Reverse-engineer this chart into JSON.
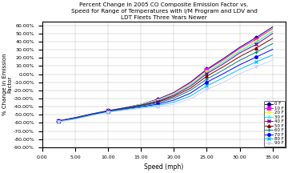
{
  "title": "Percent Change in 2005 CO Composite Emission Factor vs.\nSpeed for Range of Temperatures with I/M Program and LDV and\nLDT Fleets Three Years Newer",
  "xlabel": "Speed (mph)",
  "ylabel": "% Change in Emission\nFactor",
  "xlim": [
    0,
    37
  ],
  "ylim": [
    -0.9,
    0.65
  ],
  "xticks": [
    0.0,
    5.0,
    10.0,
    15.0,
    20.0,
    25.0,
    30.0,
    35.0
  ],
  "ytick_vals": [
    -0.9,
    -0.8,
    -0.7,
    -0.6,
    -0.5,
    -0.4,
    -0.3,
    -0.2,
    -0.1,
    0.0,
    0.1,
    0.2,
    0.3,
    0.4,
    0.5,
    0.6
  ],
  "ytick_labels": [
    "-90.00%",
    "-80.00%",
    "-70.00%",
    "-60.00%",
    "-50.00%",
    "-40.00%",
    "-30.00%",
    "-20.00%",
    "-10.00%",
    "0.00%",
    "10.00%",
    "20.00%",
    "30.00%",
    "40.00%",
    "50.00%",
    "60.00%"
  ],
  "temperatures": [
    0,
    10,
    20,
    30,
    40,
    50,
    60,
    70,
    80,
    90
  ],
  "colors": {
    "0": "#000080",
    "10": "#FF00FF",
    "20": "#FFFF00",
    "30": "#00FFFF",
    "40": "#800080",
    "50": "#800000",
    "60": "#008080",
    "70": "#0000FF",
    "80": "#00BFFF",
    "90": "#D0D0FF"
  },
  "markers": {
    "0": "D",
    "10": "s",
    "20": "*",
    "30": "+",
    "40": "x",
    "50": "^",
    "60": "+",
    "70": "o",
    "80": "x",
    "90": "v"
  },
  "speeds": [
    2.5,
    5.0,
    7.5,
    10.0,
    12.5,
    15.0,
    17.5,
    20.0,
    22.5,
    25.0,
    27.5,
    30.0,
    32.5,
    35.0
  ],
  "curves": {
    "0": [
      -0.575,
      -0.535,
      -0.49,
      -0.45,
      -0.415,
      -0.37,
      -0.31,
      -0.225,
      -0.1,
      0.06,
      0.19,
      0.33,
      0.45,
      0.58
    ],
    "10": [
      -0.575,
      -0.535,
      -0.49,
      -0.45,
      -0.415,
      -0.37,
      -0.315,
      -0.23,
      -0.11,
      0.05,
      0.175,
      0.315,
      0.43,
      0.56
    ],
    "20": [
      -0.575,
      -0.535,
      -0.49,
      -0.45,
      -0.415,
      -0.37,
      -0.32,
      -0.24,
      -0.12,
      0.035,
      0.16,
      0.295,
      0.41,
      0.545
    ],
    "30": [
      -0.575,
      -0.535,
      -0.49,
      -0.45,
      -0.415,
      -0.375,
      -0.325,
      -0.25,
      -0.135,
      0.02,
      0.145,
      0.28,
      0.39,
      0.525
    ],
    "40": [
      -0.575,
      -0.535,
      -0.49,
      -0.45,
      -0.415,
      -0.38,
      -0.335,
      -0.26,
      -0.15,
      0.005,
      0.125,
      0.26,
      0.365,
      0.5
    ],
    "50": [
      -0.58,
      -0.54,
      -0.495,
      -0.455,
      -0.42,
      -0.385,
      -0.345,
      -0.275,
      -0.175,
      -0.025,
      0.09,
      0.215,
      0.32,
      0.44
    ],
    "60": [
      -0.58,
      -0.54,
      -0.495,
      -0.455,
      -0.425,
      -0.39,
      -0.355,
      -0.295,
      -0.2,
      -0.06,
      0.05,
      0.17,
      0.27,
      0.375
    ],
    "70": [
      -0.58,
      -0.545,
      -0.5,
      -0.46,
      -0.43,
      -0.4,
      -0.37,
      -0.32,
      -0.235,
      -0.1,
      0.005,
      0.115,
      0.21,
      0.305
    ],
    "80": [
      -0.585,
      -0.55,
      -0.505,
      -0.465,
      -0.435,
      -0.41,
      -0.385,
      -0.345,
      -0.27,
      -0.145,
      -0.045,
      0.06,
      0.15,
      0.235
    ],
    "90": [
      -0.585,
      -0.555,
      -0.51,
      -0.47,
      -0.445,
      -0.42,
      -0.4,
      -0.37,
      -0.305,
      -0.19,
      -0.1,
      0.005,
      0.09,
      0.175
    ]
  }
}
